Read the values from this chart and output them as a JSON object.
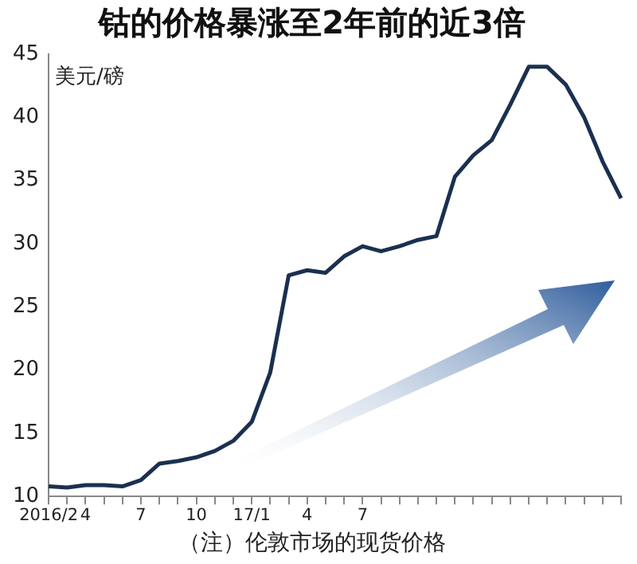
{
  "chart_data": {
    "type": "line",
    "title": "钴的价格暴涨至2年前的近3倍",
    "ylabel": "美元/磅",
    "annotations": [
      "（注）伦敦市场的现货价格"
    ],
    "categories": [
      "2016/2",
      null,
      "4",
      null,
      null,
      "7",
      null,
      null,
      "10",
      null,
      null,
      "17/1",
      null,
      null,
      "4",
      null,
      null,
      "7",
      null,
      null,
      null,
      null,
      null,
      null,
      null,
      null,
      null,
      null,
      null,
      null,
      null,
      null
    ],
    "series": [
      {
        "color": "#1b3050",
        "values": [
          10.8,
          10.7,
          10.9,
          10.9,
          10.8,
          11.3,
          12.6,
          12.8,
          13.1,
          13.6,
          14.4,
          15.9,
          19.8,
          27.5,
          27.9,
          27.7,
          29.0,
          29.8,
          29.4,
          29.8,
          30.3,
          30.6,
          35.3,
          37.0,
          38.2,
          41.0,
          44.0,
          44.0,
          42.6,
          40.0,
          36.5,
          33.6
        ]
      }
    ],
    "ylim": [
      10,
      45
    ],
    "yticks": [
      10,
      15,
      20,
      25,
      30,
      35,
      40,
      45
    ],
    "grid": false,
    "legend": false,
    "marker": "none",
    "line_style": "solid"
  }
}
